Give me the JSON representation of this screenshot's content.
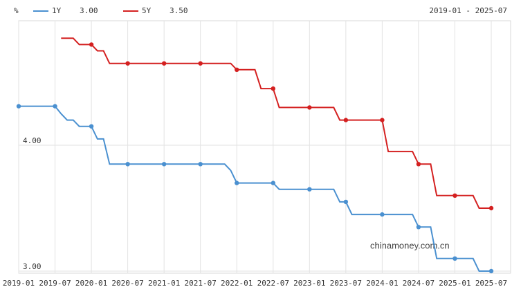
{
  "chart_data": {
    "type": "line",
    "unit_label": "%",
    "range_label": "2019-01 - 2025-07",
    "watermark": "chinamoney.com.cn",
    "categories": [
      "2019-01",
      null,
      null,
      null,
      null,
      null,
      "2019-07",
      null,
      null,
      null,
      null,
      null,
      "2020-01",
      null,
      null,
      null,
      null,
      null,
      "2020-07",
      null,
      null,
      null,
      null,
      null,
      "2021-01",
      null,
      null,
      null,
      null,
      null,
      "2021-07",
      null,
      null,
      null,
      null,
      null,
      "2022-01",
      null,
      null,
      null,
      null,
      null,
      "2022-07",
      null,
      null,
      null,
      null,
      null,
      "2023-01",
      null,
      null,
      null,
      null,
      null,
      "2023-07",
      null,
      null,
      null,
      null,
      null,
      "2024-01",
      null,
      null,
      null,
      null,
      null,
      "2024-07",
      null,
      null,
      null,
      null,
      null,
      "2025-01",
      null,
      null,
      null,
      null,
      null,
      "2025-07"
    ],
    "series": [
      {
        "name": "1Y",
        "legend_value_label": "3.00",
        "color": "#4a90d0",
        "values": [
          4.31,
          4.31,
          4.31,
          4.31,
          4.31,
          4.31,
          4.31,
          4.25,
          4.2,
          4.2,
          4.15,
          4.15,
          4.15,
          4.05,
          4.05,
          3.85,
          3.85,
          3.85,
          3.85,
          3.85,
          3.85,
          3.85,
          3.85,
          3.85,
          3.85,
          3.85,
          3.85,
          3.85,
          3.85,
          3.85,
          3.85,
          3.85,
          3.85,
          3.85,
          3.85,
          3.8,
          3.7,
          3.7,
          3.7,
          3.7,
          3.7,
          3.7,
          3.7,
          3.65,
          3.65,
          3.65,
          3.65,
          3.65,
          3.65,
          3.65,
          3.65,
          3.65,
          3.65,
          3.55,
          3.55,
          3.45,
          3.45,
          3.45,
          3.45,
          3.45,
          3.45,
          3.45,
          3.45,
          3.45,
          3.45,
          3.45,
          3.35,
          3.35,
          3.35,
          3.1,
          3.1,
          3.1,
          3.1,
          3.1,
          3.1,
          3.1,
          3,
          3,
          3
        ]
      },
      {
        "name": "5Y",
        "legend_value_label": "3.50",
        "color": "#d42020",
        "values": [
          null,
          null,
          null,
          null,
          null,
          null,
          null,
          4.85,
          4.85,
          4.85,
          4.8,
          4.8,
          4.8,
          4.75,
          4.75,
          4.65,
          4.65,
          4.65,
          4.65,
          4.65,
          4.65,
          4.65,
          4.65,
          4.65,
          4.65,
          4.65,
          4.65,
          4.65,
          4.65,
          4.65,
          4.65,
          4.65,
          4.65,
          4.65,
          4.65,
          4.65,
          4.6,
          4.6,
          4.6,
          4.6,
          4.45,
          4.45,
          4.45,
          4.3,
          4.3,
          4.3,
          4.3,
          4.3,
          4.3,
          4.3,
          4.3,
          4.3,
          4.3,
          4.2,
          4.2,
          4.2,
          4.2,
          4.2,
          4.2,
          4.2,
          4.2,
          3.95,
          3.95,
          3.95,
          3.95,
          3.95,
          3.85,
          3.85,
          3.85,
          3.6,
          3.6,
          3.6,
          3.6,
          3.6,
          3.6,
          3.6,
          3.5,
          3.5,
          3.5
        ]
      }
    ],
    "ylim": [
      3,
      5
    ],
    "yticks": [
      {
        "value": 3,
        "label": "3.00"
      },
      {
        "value": 4,
        "label": "4.00"
      }
    ],
    "grid": true
  }
}
